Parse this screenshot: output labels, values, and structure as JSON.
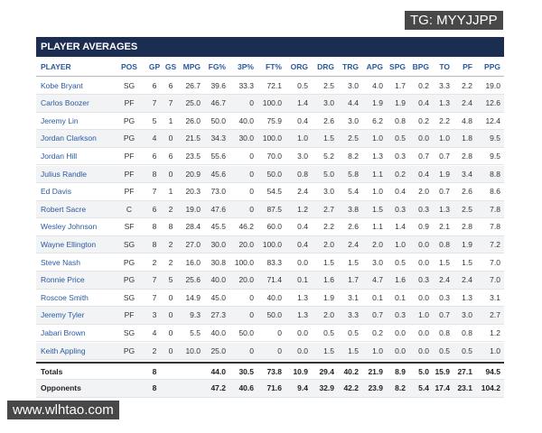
{
  "header": {
    "title": "PLAYER AVERAGES"
  },
  "watermarks": [
    "TG: MYYJJPP",
    "www.wlhtao.com"
  ],
  "table": {
    "columns": [
      "PLAYER",
      "POS",
      "GP",
      "GS",
      "MPG",
      "FG%",
      "3P%",
      "FT%",
      "ORG",
      "DRG",
      "TRG",
      "APG",
      "SPG",
      "BPG",
      "TO",
      "PF",
      "PPG"
    ],
    "rows": [
      [
        "Kobe Bryant",
        "SG",
        "6",
        "6",
        "26.7",
        "39.6",
        "33.3",
        "72.1",
        "0.5",
        "2.5",
        "3.0",
        "4.0",
        "1.7",
        "0.2",
        "3.3",
        "2.2",
        "19.0"
      ],
      [
        "Carlos Boozer",
        "PF",
        "7",
        "7",
        "25.0",
        "46.7",
        "0",
        "100.0",
        "1.4",
        "3.0",
        "4.4",
        "1.9",
        "1.9",
        "0.4",
        "1.3",
        "2.4",
        "12.6"
      ],
      [
        "Jeremy Lin",
        "PG",
        "5",
        "1",
        "26.0",
        "50.0",
        "40.0",
        "75.9",
        "0.4",
        "2.6",
        "3.0",
        "6.2",
        "0.8",
        "0.2",
        "2.2",
        "4.8",
        "12.4"
      ],
      [
        "Jordan Clarkson",
        "PG",
        "4",
        "0",
        "21.5",
        "34.3",
        "30.0",
        "100.0",
        "1.0",
        "1.5",
        "2.5",
        "1.0",
        "0.5",
        "0.0",
        "1.0",
        "1.8",
        "9.5"
      ],
      [
        "Jordan Hill",
        "PF",
        "6",
        "6",
        "23.5",
        "55.6",
        "0",
        "70.0",
        "3.0",
        "5.2",
        "8.2",
        "1.3",
        "0.3",
        "0.7",
        "0.7",
        "2.8",
        "9.5"
      ],
      [
        "Julius Randle",
        "PF",
        "8",
        "0",
        "20.9",
        "45.6",
        "0",
        "50.0",
        "0.8",
        "5.0",
        "5.8",
        "1.1",
        "0.2",
        "0.4",
        "1.9",
        "3.4",
        "8.8"
      ],
      [
        "Ed Davis",
        "PF",
        "7",
        "1",
        "20.3",
        "73.0",
        "0",
        "54.5",
        "2.4",
        "3.0",
        "5.4",
        "1.0",
        "0.4",
        "2.0",
        "0.7",
        "2.6",
        "8.6"
      ],
      [
        "Robert Sacre",
        "C",
        "6",
        "2",
        "19.0",
        "47.6",
        "0",
        "87.5",
        "1.2",
        "2.7",
        "3.8",
        "1.5",
        "0.3",
        "0.3",
        "1.3",
        "2.5",
        "7.8"
      ],
      [
        "Wesley Johnson",
        "SF",
        "8",
        "8",
        "28.4",
        "45.5",
        "46.2",
        "60.0",
        "0.4",
        "2.2",
        "2.6",
        "1.1",
        "1.4",
        "0.9",
        "2.1",
        "2.8",
        "7.8"
      ],
      [
        "Wayne Ellington",
        "SG",
        "8",
        "2",
        "27.0",
        "30.0",
        "20.0",
        "100.0",
        "0.4",
        "2.0",
        "2.4",
        "2.0",
        "1.0",
        "0.0",
        "0.8",
        "1.9",
        "7.2"
      ],
      [
        "Steve Nash",
        "PG",
        "2",
        "2",
        "16.0",
        "30.8",
        "100.0",
        "83.3",
        "0.0",
        "1.5",
        "1.5",
        "3.0",
        "0.5",
        "0.0",
        "1.5",
        "1.5",
        "7.0"
      ],
      [
        "Ronnie Price",
        "PG",
        "7",
        "5",
        "25.6",
        "40.0",
        "20.0",
        "71.4",
        "0.1",
        "1.6",
        "1.7",
        "4.7",
        "1.6",
        "0.3",
        "2.4",
        "2.4",
        "7.0"
      ],
      [
        "Roscoe Smith",
        "SG",
        "7",
        "0",
        "14.9",
        "45.0",
        "0",
        "40.0",
        "1.3",
        "1.9",
        "3.1",
        "0.1",
        "0.1",
        "0.0",
        "0.3",
        "1.3",
        "3.1"
      ],
      [
        "Jeremy Tyler",
        "PF",
        "3",
        "0",
        "9.3",
        "27.3",
        "0",
        "50.0",
        "1.3",
        "2.0",
        "3.3",
        "0.7",
        "0.3",
        "1.0",
        "0.7",
        "3.0",
        "2.7"
      ],
      [
        "Jabari Brown",
        "SG",
        "4",
        "0",
        "5.5",
        "40.0",
        "50.0",
        "0",
        "0.0",
        "0.5",
        "0.5",
        "0.2",
        "0.0",
        "0.0",
        "0.8",
        "0.8",
        "1.2"
      ],
      [
        "Keith Appling",
        "PG",
        "2",
        "0",
        "10.0",
        "25.0",
        "0",
        "0",
        "0.0",
        "1.5",
        "1.5",
        "1.0",
        "0.0",
        "0.0",
        "0.5",
        "0.5",
        "1.0"
      ]
    ],
    "totals": [
      [
        "Totals",
        null,
        "8",
        null,
        null,
        "44.0",
        "30.5",
        "73.8",
        "10.9",
        "29.4",
        "40.2",
        "21.9",
        "8.9",
        "5.0",
        "15.9",
        "27.1",
        "94.5"
      ],
      [
        "Opponents",
        null,
        "8",
        null,
        null,
        "47.2",
        "40.6",
        "71.6",
        "9.4",
        "32.9",
        "42.2",
        "23.9",
        "8.2",
        "5.4",
        "17.4",
        "23.1",
        "104.2"
      ]
    ]
  }
}
